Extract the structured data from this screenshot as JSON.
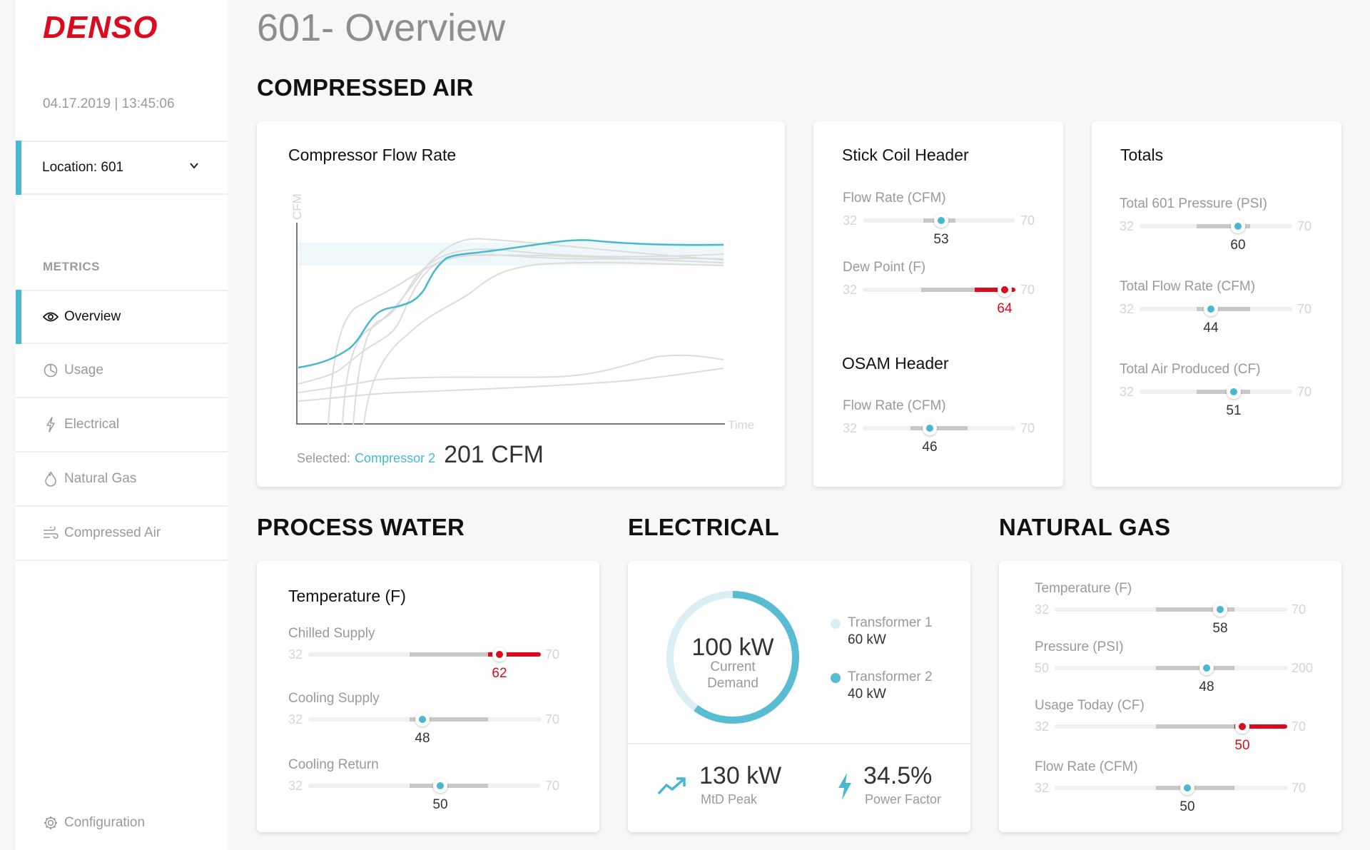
{
  "brand": "DENSO",
  "datetime": "04.17.2019 | 13:45:06",
  "location": {
    "label": "Location: 601"
  },
  "metrics_heading": "METRICS",
  "nav": [
    {
      "label": "Overview",
      "icon": "eye-icon",
      "active": true
    },
    {
      "label": "Usage",
      "icon": "clock-pie-icon",
      "active": false
    },
    {
      "label": "Electrical",
      "icon": "lightning-icon",
      "active": false
    },
    {
      "label": "Natural Gas",
      "icon": "flame-icon",
      "active": false
    },
    {
      "label": "Compressed Air",
      "icon": "wind-icon",
      "active": false
    }
  ],
  "configuration": "Configuration",
  "page_title": "601- Overview",
  "sections": {
    "compressed_air": "COMPRESSED AIR",
    "process_water": "PROCESS WATER",
    "electrical": "ELECTRICAL",
    "natural_gas": "NATURAL GAS"
  },
  "flow_chart": {
    "title": "Compressor Flow Rate",
    "ylabel": "CFM",
    "xlabel": "Time",
    "selected_label": "Selected:",
    "selected_name": "Compressor 2",
    "selected_value": "201 CFM"
  },
  "chart_data": {
    "type": "line",
    "xlabel": "Time",
    "ylabel": "CFM",
    "highlight": "Compressor 2",
    "accent_color": "#47b8cf"
  },
  "stick_coil": {
    "title": "Stick Coil Header",
    "metrics": [
      {
        "label": "Flow Rate (CFM)",
        "min": "32",
        "max": "70",
        "value": "53",
        "alert": false
      },
      {
        "label": "Dew Point (F)",
        "min": "32",
        "max": "70",
        "value": "64",
        "alert": true
      }
    ]
  },
  "osam": {
    "title": "OSAM Header",
    "metrics": [
      {
        "label": "Flow Rate (CFM)",
        "min": "32",
        "max": "70",
        "value": "46",
        "alert": false
      }
    ]
  },
  "totals": {
    "title": "Totals",
    "metrics": [
      {
        "label": "Total 601 Pressure (PSI)",
        "min": "32",
        "max": "70",
        "value": "60",
        "alert": false
      },
      {
        "label": "Total Flow Rate (CFM)",
        "min": "32",
        "max": "70",
        "value": "44",
        "alert": false
      },
      {
        "label": "Total Air Produced (CF)",
        "min": "32",
        "max": "70",
        "value": "51",
        "alert": false
      }
    ]
  },
  "process_water": {
    "title": "Temperature (F)",
    "metrics": [
      {
        "label": "Chilled Supply",
        "min": "32",
        "max": "70",
        "value": "62",
        "alert": true
      },
      {
        "label": "Cooling Supply",
        "min": "32",
        "max": "70",
        "value": "48",
        "alert": false
      },
      {
        "label": "Cooling Return",
        "min": "32",
        "max": "70",
        "value": "50",
        "alert": false
      }
    ]
  },
  "electrical": {
    "demand_value": "100 kW",
    "demand_label_1": "Current",
    "demand_label_2": "Demand",
    "demand_fraction": 0.6,
    "transformer1_name": "Transformer 1",
    "transformer1_value": "60 kW",
    "transformer2_name": "Transformer 2",
    "transformer2_value": "40 kW",
    "peak_value": "130 kW",
    "peak_label": "MtD Peak",
    "pf_value": "34.5%",
    "pf_label": "Power Factor"
  },
  "natural_gas": {
    "metrics": [
      {
        "label": "Temperature (F)",
        "min": "32",
        "max": "70",
        "value": "58",
        "alert": false
      },
      {
        "label": "Pressure (PSI)",
        "min": "50",
        "max": "200",
        "value": "48",
        "alert": false
      },
      {
        "label": "Usage Today (CF)",
        "min": "32",
        "max": "70",
        "value": "50",
        "alert": true
      },
      {
        "label": "Flow Rate (CFM)",
        "min": "32",
        "max": "70",
        "value": "50",
        "alert": false
      }
    ]
  },
  "colors": {
    "accent": "#47b8cf",
    "alert": "#dc0a1e",
    "brand": "#dc0a1e"
  }
}
